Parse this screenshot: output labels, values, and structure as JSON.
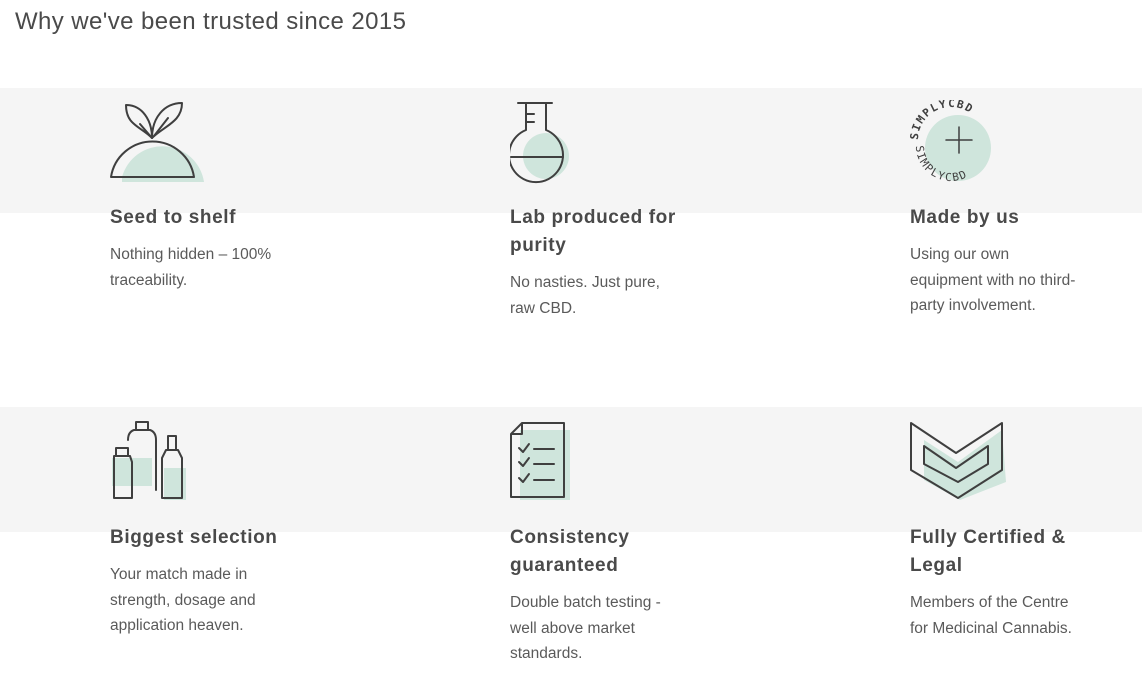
{
  "heading": "Why we've been trusted since 2015",
  "features": [
    {
      "icon": "seed-sprout-icon",
      "title": "Seed to shelf",
      "description_lines": [
        "Nothing hidden – 100%",
        "traceability."
      ]
    },
    {
      "icon": "lab-flask-icon",
      "title_lines": [
        "Lab produced for",
        "purity"
      ],
      "description_lines": [
        "No nasties. Just pure,",
        "raw CBD."
      ]
    },
    {
      "icon": "simply-cbd-stamp-icon",
      "stamp_text": "SIMPLYCBD",
      "title": "Made by us",
      "description_lines": [
        "Using our own",
        "equipment with no third-",
        "party involvement."
      ]
    },
    {
      "icon": "bottles-icon",
      "title": "Biggest selection",
      "description_lines": [
        "Your match made in",
        "strength, dosage and",
        "application heaven."
      ]
    },
    {
      "icon": "checklist-document-icon",
      "title_lines": [
        "Consistency",
        "guaranteed"
      ],
      "description_lines": [
        "Double batch testing -",
        "well above market",
        "standards."
      ]
    },
    {
      "icon": "certified-shield-icon",
      "title_lines": [
        "Fully Certified &",
        "Legal"
      ],
      "description_lines": [
        "Members of the Centre",
        "for Medicinal Cannabis."
      ]
    }
  ],
  "colors": {
    "band": "#f5f5f5",
    "accent_mint": "#cfe5dc",
    "text": "#4a4a4a",
    "icon_stroke": "#3f3f3f"
  }
}
